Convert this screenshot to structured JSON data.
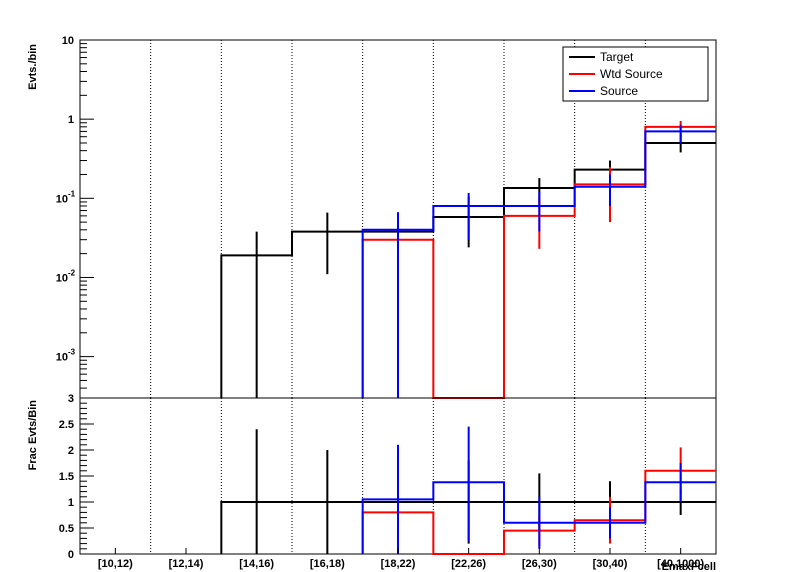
{
  "chart_data": [
    {
      "type": "line",
      "panel": "top",
      "ylabel": "Evts./bin",
      "yscale": "log",
      "ylim": [
        0.0003,
        10
      ],
      "y_tick_labels": [
        {
          "value": 10,
          "base": "10",
          "exp": ""
        },
        {
          "value": 1,
          "base": "1",
          "exp": ""
        },
        {
          "value": 0.1,
          "base": "10",
          "exp": "-1"
        },
        {
          "value": 0.01,
          "base": "10",
          "exp": "-2"
        },
        {
          "value": 0.001,
          "base": "10",
          "exp": "-3"
        }
      ],
      "categories": [
        "[10,12)",
        "[12,14)",
        "[14,16)",
        "[16,18)",
        "[18,22)",
        "[22,26)",
        "[26,30)",
        "[30,40)",
        "[40,1000)"
      ],
      "legend": {
        "position": "top-right",
        "entries": [
          "Target",
          "Wtd Source",
          "Source"
        ]
      },
      "series": [
        {
          "name": "Target",
          "color": "#000000",
          "values": [
            0,
            0,
            0.019,
            0.038,
            0.038,
            0.058,
            0.135,
            0.23,
            0.5
          ],
          "err_low": [
            null,
            null,
            0.0003,
            0.011,
            null,
            0.024,
            0.075,
            0.14,
            0.38
          ],
          "err_high": [
            null,
            null,
            0.038,
            0.066,
            null,
            0.105,
            0.18,
            0.3,
            0.65
          ]
        },
        {
          "name": "Wtd Source",
          "color": "#ff0000",
          "values": [
            0,
            0,
            0,
            0,
            0.03,
            0,
            0.06,
            0.15,
            0.8
          ],
          "err_low": [
            null,
            null,
            null,
            null,
            0.009,
            null,
            0.023,
            0.05,
            0.6
          ],
          "err_high": [
            null,
            null,
            null,
            null,
            0.06,
            null,
            0.1,
            0.25,
            0.95
          ]
        },
        {
          "name": "Source",
          "color": "#0000ff",
          "values": [
            0,
            0,
            0,
            0,
            0.04,
            0.08,
            0.08,
            0.14,
            0.7
          ],
          "err_low": [
            null,
            null,
            null,
            null,
            0.0003,
            0.03,
            0.038,
            0.08,
            0.5
          ],
          "err_high": [
            null,
            null,
            null,
            null,
            0.067,
            0.117,
            0.12,
            0.2,
            0.85
          ]
        }
      ]
    },
    {
      "type": "line",
      "panel": "bottom",
      "ylabel": "Frac Evts/Bin",
      "xlabel": "EmaxFcell",
      "ylim": [
        0,
        3
      ],
      "y_ticks": [
        0,
        0.5,
        1,
        1.5,
        2,
        2.5,
        3
      ],
      "y_tick_labels": [
        "0",
        "0.5",
        "1",
        "1.5",
        "2",
        "2.5",
        "3"
      ],
      "categories": [
        "[10,12)",
        "[12,14)",
        "[14,16)",
        "[16,18)",
        "[18,22)",
        "[22,26)",
        "[26,30)",
        "[30,40)",
        "[40,1000)"
      ],
      "series": [
        {
          "name": "Target",
          "color": "#000000",
          "values": [
            0,
            0,
            1,
            1,
            1,
            1,
            1,
            1,
            1
          ],
          "err_low": [
            null,
            null,
            0,
            0,
            null,
            0.2,
            0.45,
            0.6,
            0.75
          ],
          "err_high": [
            null,
            null,
            2.4,
            2.0,
            null,
            1.8,
            1.55,
            1.4,
            1.25
          ]
        },
        {
          "name": "Wtd Source",
          "color": "#ff0000",
          "values": [
            0,
            0,
            0,
            0,
            0.8,
            0,
            0.45,
            0.65,
            1.6
          ],
          "err_low": [
            null,
            null,
            null,
            null,
            0.25,
            null,
            0.15,
            0.2,
            1.15
          ],
          "err_high": [
            null,
            null,
            null,
            null,
            1.35,
            null,
            0.75,
            1.1,
            2.05
          ]
        },
        {
          "name": "Source",
          "color": "#0000ff",
          "values": [
            0,
            0,
            0,
            0,
            1.05,
            1.38,
            0.6,
            0.6,
            1.38
          ],
          "err_low": [
            null,
            null,
            null,
            null,
            0,
            0.25,
            0.1,
            0.3,
            1.0
          ],
          "err_high": [
            null,
            null,
            null,
            null,
            2.1,
            2.45,
            1.1,
            0.9,
            1.75
          ]
        }
      ]
    }
  ]
}
